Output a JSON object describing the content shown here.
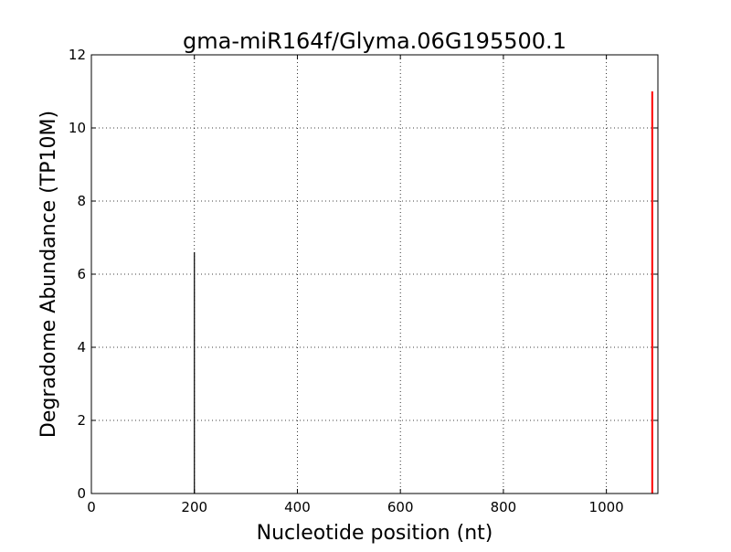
{
  "chart_data": {
    "type": "bar",
    "title": "gma-miR164f/Glyma.06G195500.1",
    "xlabel": "Nucleotide position (nt)",
    "ylabel": "Degradome Abundance (TP10M)",
    "xlim": [
      0,
      1100
    ],
    "ylim": [
      0,
      12
    ],
    "xticks": [
      0,
      200,
      400,
      600,
      800,
      1000
    ],
    "yticks": [
      0,
      2,
      4,
      6,
      8,
      10,
      12
    ],
    "grid": true,
    "series": [
      {
        "color": "#000000",
        "points": [
          {
            "x": 200,
            "y": 6.6
          }
        ]
      },
      {
        "color": "#ff0000",
        "points": [
          {
            "x": 1089,
            "y": 11.0
          }
        ]
      }
    ]
  }
}
